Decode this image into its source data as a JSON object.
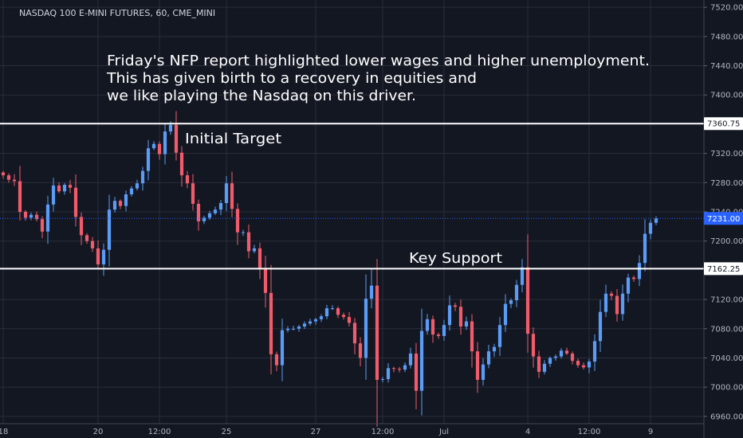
{
  "chart_data": {
    "type": "candlestick",
    "title": "NASDAQ 100 E-MINI FUTURES, 60, CME_MINI",
    "ylim": [
      6950,
      7530
    ],
    "y_ticks": [
      6960.0,
      7000.0,
      7040.0,
      7080.0,
      7120.0,
      7200.0,
      7240.0,
      7280.0,
      7320.0,
      7400.0,
      7440.0,
      7480.0,
      7520.0
    ],
    "x_ticks": [
      {
        "i": 0,
        "label": "18"
      },
      {
        "i": 17,
        "label": "20"
      },
      {
        "i": 28,
        "label": "12:00"
      },
      {
        "i": 40,
        "label": "25"
      },
      {
        "i": 56,
        "label": "27"
      },
      {
        "i": 68,
        "label": "12:00"
      },
      {
        "i": 79,
        "label": "Jul"
      },
      {
        "i": 94,
        "label": "4"
      },
      {
        "i": 105,
        "label": "12:00"
      },
      {
        "i": 116,
        "label": "9"
      }
    ],
    "horizontal_lines": [
      {
        "name": "initial-target",
        "price": 7360.75,
        "label": "7360.75",
        "annotation": "Initial Target"
      },
      {
        "name": "key-support",
        "price": 7162.25,
        "label": "7162.25",
        "annotation": "Key Support"
      }
    ],
    "last_price": {
      "price": 7231.0,
      "label": "7231.00"
    },
    "annotation_lines": [
      "Friday's NFP report highlighted lower wages and higher unemployment.",
      "This has given birth to a recovery in equities and",
      "we like playing the Nasdaq on this driver."
    ],
    "colors": {
      "up": "#5b9cf6",
      "down": "#f05c6b",
      "background": "#131722",
      "grid": "#2a2e39",
      "level_line": "#ffffff"
    },
    "closes": [
      7290,
      7284,
      7282,
      7240,
      7232,
      7236,
      7230,
      7213,
      7250,
      7276,
      7268,
      7277,
      7273,
      7233,
      7208,
      7200,
      7190,
      7168,
      7188,
      7243,
      7255,
      7248,
      7264,
      7272,
      7279,
      7296,
      7327,
      7333,
      7319,
      7350,
      7359,
      7321,
      7290,
      7279,
      7251,
      7227,
      7232,
      7238,
      7243,
      7252,
      7279,
      7244,
      7212,
      7212,
      7186,
      7190,
      7162,
      7129,
      7045,
      7030,
      7078,
      7080,
      7080,
      7083,
      7087,
      7090,
      7093,
      7097,
      7108,
      7108,
      7099,
      7096,
      7088,
      7060,
      7040,
      7121,
      7139,
      7010,
      7011,
      7026,
      7025,
      7024,
      7030,
      7046,
      6995,
      7077,
      7093,
      7072,
      7070,
      7085,
      7112,
      7110,
      7083,
      7090,
      7049,
      7010,
      7031,
      7049,
      7055,
      7085,
      7114,
      7119,
      7140,
      7164,
      7073,
      7042,
      7021,
      7032,
      7040,
      7042,
      7050,
      7046,
      7036,
      7030,
      7027,
      7035,
      7063,
      7103,
      7128,
      7125,
      7100,
      7128,
      7150,
      7148,
      7170,
      7210,
      7225,
      7231
    ]
  }
}
